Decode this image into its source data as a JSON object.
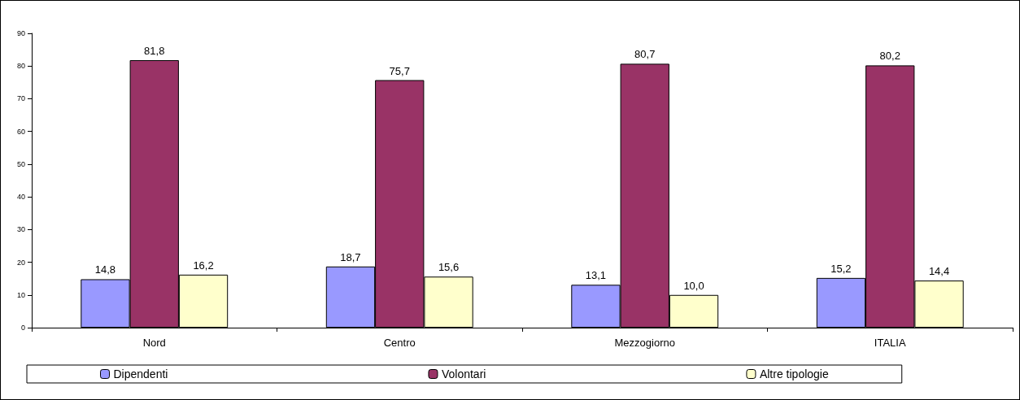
{
  "chart_data": {
    "type": "bar",
    "categories": [
      "Nord",
      "Centro",
      "Mezzogiorno",
      "ITALIA"
    ],
    "series": [
      {
        "name": "Dipendenti",
        "color": "#9999ff",
        "values": [
          14.8,
          18.7,
          13.1,
          15.2
        ],
        "value_labels": [
          "14,8",
          "18,7",
          "13,1",
          "15,2"
        ]
      },
      {
        "name": "Volontari",
        "color": "#993366",
        "values": [
          81.8,
          75.7,
          80.7,
          80.2
        ],
        "value_labels": [
          "81,8",
          "75,7",
          "80,7",
          "80,2"
        ]
      },
      {
        "name": "Altre tipologie",
        "color": "#ffffcc",
        "values": [
          16.2,
          15.6,
          10.0,
          14.4
        ],
        "value_labels": [
          "16,2",
          "15,6",
          "10,0",
          "14,4"
        ]
      }
    ],
    "ylim": [
      0,
      90
    ],
    "yticks": [
      0,
      10,
      20,
      30,
      40,
      50,
      60,
      70,
      80,
      90
    ],
    "grid": false,
    "legend": "bottom"
  }
}
